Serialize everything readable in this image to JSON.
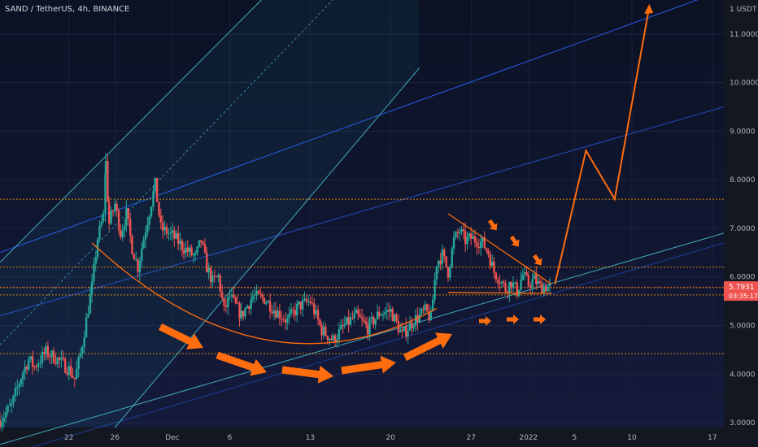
{
  "chart_data": {
    "type": "candlestick",
    "title": "SAND / TetherUS, 4h, BINANCE",
    "currency_label": "1 USDT",
    "y_ticks": [
      "3.0000",
      "4.0000",
      "5.0000",
      "6.0000",
      "7.0000",
      "8.0000",
      "9.0000",
      "10.0000",
      "11.0000"
    ],
    "y_tick_values": [
      3,
      4,
      5,
      6,
      7,
      8,
      9,
      10,
      11
    ],
    "x_ticks": [
      "22",
      "26",
      "Dec",
      "6",
      "13",
      "20",
      "27",
      "2022",
      "5",
      "10",
      "17"
    ],
    "x_tick_days": [
      -9,
      -5,
      0,
      5,
      12,
      19,
      26,
      31,
      35,
      40,
      47
    ],
    "ylim": [
      2.9,
      11.7
    ],
    "xlim": [
      -15,
      48
    ],
    "price_badge": {
      "value": "5.7931",
      "countdown": "03:35:17",
      "price": 5.7931,
      "color": "#ef5350"
    },
    "colors": {
      "up": "#26a69a",
      "down": "#ef5350",
      "annotation": "#ff6d0f",
      "channel": "#2962ff",
      "channel_light": "#4dd0e1",
      "level": "#ff9800"
    },
    "horizontal_levels": [
      7.6,
      6.2,
      5.78,
      5.63,
      4.42
    ],
    "price_path": [
      [
        -15,
        3.05
      ],
      [
        -14,
        3.35
      ],
      [
        -13,
        4.05
      ],
      [
        -12.5,
        4.3
      ],
      [
        -12,
        4.15
      ],
      [
        -11,
        4.45
      ],
      [
        -10,
        4.3
      ],
      [
        -9,
        4.1
      ],
      [
        -8.5,
        3.9
      ],
      [
        -8,
        4.4
      ],
      [
        -7,
        5.8
      ],
      [
        -6.5,
        6.8
      ],
      [
        -6,
        7.25
      ],
      [
        -5.8,
        8.35
      ],
      [
        -5.5,
        7.1
      ],
      [
        -5,
        7.5
      ],
      [
        -4.5,
        6.9
      ],
      [
        -4,
        7.3
      ],
      [
        -3.5,
        6.6
      ],
      [
        -3,
        6.2
      ],
      [
        -2.5,
        6.8
      ],
      [
        -2,
        7.35
      ],
      [
        -1.5,
        7.9
      ],
      [
        -1,
        7.0
      ],
      [
        0,
        6.85
      ],
      [
        1,
        6.6
      ],
      [
        2,
        6.4
      ],
      [
        2.5,
        6.75
      ],
      [
        3,
        6.2
      ],
      [
        3.5,
        5.9
      ],
      [
        4,
        6.0
      ],
      [
        4.5,
        5.3
      ],
      [
        5,
        5.6
      ],
      [
        6,
        5.2
      ],
      [
        7,
        5.6
      ],
      [
        8,
        5.55
      ],
      [
        9,
        5.3
      ],
      [
        10,
        5.1
      ],
      [
        11,
        5.4
      ],
      [
        12,
        5.5
      ],
      [
        13,
        4.9
      ],
      [
        14,
        4.7
      ],
      [
        15,
        5.0
      ],
      [
        16,
        5.2
      ],
      [
        17,
        4.95
      ],
      [
        18,
        5.25
      ],
      [
        19,
        5.3
      ],
      [
        20,
        4.8
      ],
      [
        21,
        5.1
      ],
      [
        22,
        5.3
      ],
      [
        22.5,
        5.15
      ],
      [
        23,
        6.3
      ],
      [
        23.5,
        6.45
      ],
      [
        24,
        6.1
      ],
      [
        24.5,
        6.75
      ],
      [
        25,
        6.95
      ],
      [
        25.5,
        6.75
      ],
      [
        26,
        6.8
      ],
      [
        27,
        6.7
      ],
      [
        27.5,
        6.5
      ],
      [
        28,
        6.1
      ],
      [
        28.5,
        5.95
      ],
      [
        29,
        5.75
      ],
      [
        29.5,
        5.9
      ],
      [
        30,
        5.7
      ],
      [
        30.5,
        6.05
      ],
      [
        31,
        5.85
      ],
      [
        31.5,
        5.95
      ],
      [
        32,
        5.8
      ],
      [
        33,
        5.8
      ]
    ]
  }
}
